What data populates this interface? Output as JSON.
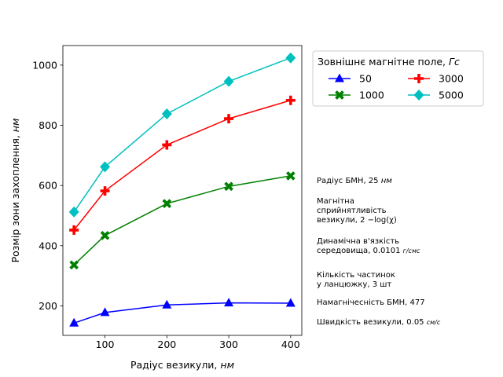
{
  "chart_data": {
    "type": "line",
    "xlabel": "Радіус везикули,",
    "xlabel_unit": "нм",
    "ylabel": "Розмір зони захоплення,",
    "ylabel_unit": "нм",
    "x": [
      50,
      100,
      200,
      300,
      400
    ],
    "xticks": [
      100,
      200,
      300,
      400
    ],
    "yticks": [
      200,
      400,
      600,
      800,
      1000
    ],
    "xlim": [
      32,
      418
    ],
    "ylim": [
      102,
      1065
    ],
    "grid": false,
    "legend": {
      "title": "Зовнішнє магнітне поле,",
      "title_unit": "Гс",
      "placement": "outside-top-right",
      "columns": 2
    },
    "series": [
      {
        "name": "50",
        "color": "#0000ff",
        "marker": "triangle",
        "values": [
          143,
          178,
          203,
          210,
          209
        ]
      },
      {
        "name": "1000",
        "color": "#008000",
        "marker": "x",
        "values": [
          336,
          434,
          540,
          597,
          632
        ]
      },
      {
        "name": "3000",
        "color": "#ff0000",
        "marker": "plus",
        "values": [
          452,
          582,
          735,
          822,
          883
        ]
      },
      {
        "name": "5000",
        "color": "#00bfbf",
        "marker": "diamond",
        "values": [
          512,
          662,
          838,
          946,
          1024
        ]
      }
    ],
    "annotations": [
      {
        "text": "Радіус БМН, 25 ",
        "unit": "нм"
      },
      {
        "text": "Магнітна\nсприйнятливість\nвезикули, 2 −log(χ)"
      },
      {
        "text": "Динамічна в'язкість\nсередовища, 0.0101 ",
        "unit": "г/смс"
      },
      {
        "text": "Кількість частинок\nу ланцюжку, 3  шт"
      },
      {
        "text": "Намагнічесність БМН, 477"
      },
      {
        "text": "Швидкість везикули, 0.05 ",
        "unit": "см/с"
      }
    ]
  }
}
